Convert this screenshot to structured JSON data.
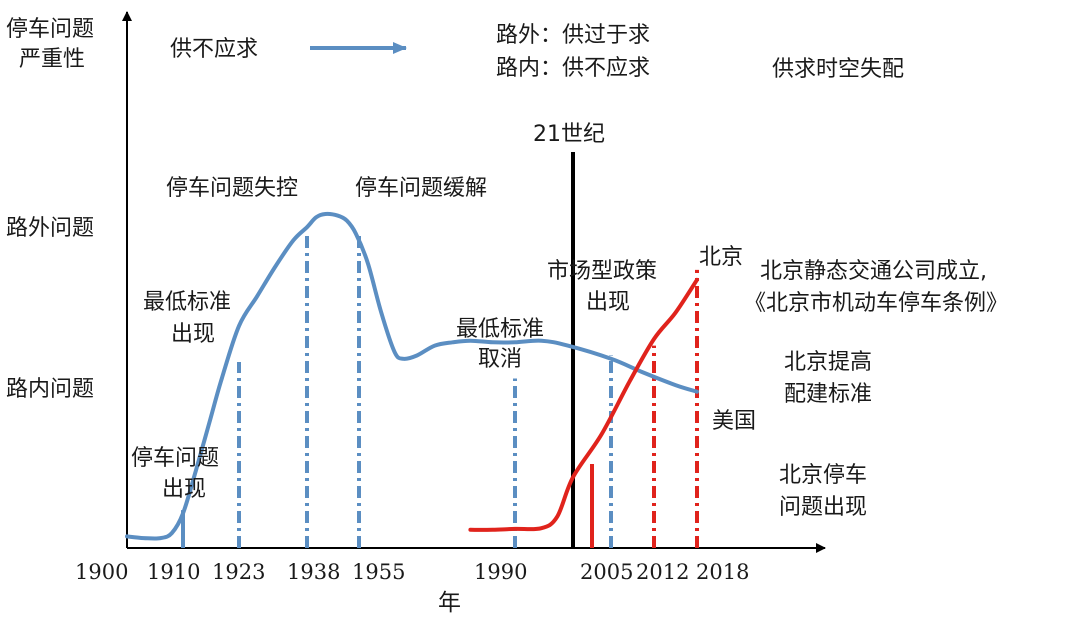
{
  "chart_data": {
    "type": "line",
    "title": "",
    "xlabel": "年",
    "ylabel": [
      "停车问题",
      "严重性"
    ],
    "y_levels": [
      {
        "id": "off-street",
        "label": "路外问题"
      },
      {
        "id": "on-street",
        "label": "路内问题"
      }
    ],
    "x_ticks": [
      1900,
      1910,
      1923,
      1938,
      1955,
      1990,
      2005,
      2012,
      2018
    ],
    "x_range": [
      1900,
      2032
    ],
    "y_range": [
      0,
      100
    ],
    "series": [
      {
        "name": "美国",
        "color": "#5b8ec2",
        "points": [
          [
            1900,
            2
          ],
          [
            1903,
            1.5
          ],
          [
            1906,
            1.5
          ],
          [
            1908,
            3
          ],
          [
            1910,
            9
          ],
          [
            1913,
            22
          ],
          [
            1916,
            36
          ],
          [
            1919,
            50
          ],
          [
            1923,
            66
          ],
          [
            1927,
            75
          ],
          [
            1931,
            84
          ],
          [
            1935,
            92
          ],
          [
            1938,
            96
          ],
          [
            1941,
            99
          ],
          [
            1944,
            100
          ],
          [
            1948,
            99.5
          ],
          [
            1951,
            98
          ],
          [
            1954,
            94
          ],
          [
            1957,
            85
          ],
          [
            1960,
            70
          ],
          [
            1963,
            58
          ],
          [
            1965,
            56
          ],
          [
            1968,
            57
          ],
          [
            1972,
            60
          ],
          [
            1976,
            61
          ],
          [
            1980,
            61.5
          ],
          [
            1985,
            61
          ],
          [
            1990,
            61
          ],
          [
            1995,
            61.5
          ],
          [
            2000,
            60
          ],
          [
            2005,
            56
          ],
          [
            2010,
            52
          ],
          [
            2015,
            48
          ],
          [
            2018,
            46
          ]
        ]
      },
      {
        "name": "北京",
        "color": "#e0231c",
        "points": [
          [
            1980,
            4
          ],
          [
            1985,
            4
          ],
          [
            1990,
            4.3
          ],
          [
            1995,
            4.5
          ],
          [
            1998,
            8
          ],
          [
            2001,
            20
          ],
          [
            2004,
            33
          ],
          [
            2008,
            49
          ],
          [
            2012,
            62
          ],
          [
            2015,
            70
          ],
          [
            2018,
            80
          ]
        ]
      }
    ],
    "legend": {
      "label": "供不应求",
      "color": "#5b8ec2"
    },
    "markers": [
      {
        "x": 1910,
        "kind": "solid",
        "color": "#5b8ec2",
        "y_top": 10
      },
      {
        "x": 1923,
        "kind": "dashdot",
        "color": "#5b8ec2",
        "y_top": 55
      },
      {
        "x": 1938,
        "kind": "dashdot",
        "color": "#5b8ec2",
        "y_top": 94
      },
      {
        "x": 1955,
        "kind": "dashdot",
        "color": "#5b8ec2",
        "y_top": 94
      },
      {
        "x": 1990,
        "kind": "dashdot",
        "color": "#5b8ec2",
        "y_top": 50
      },
      {
        "x": 2003,
        "kind": "solid",
        "color": "#e0231c",
        "y_top": 24
      },
      {
        "x": 2005,
        "kind": "dashdot",
        "color": "#5b8ec2",
        "y_top": 57
      },
      {
        "x": 2012,
        "kind": "dashdot",
        "color": "#e0231c",
        "y_top": 60
      },
      {
        "x": 2018,
        "kind": "dashdot",
        "color": "#e0231c",
        "y_top": 83
      }
    ],
    "century_line": {
      "x": 2001,
      "label": "21世纪"
    },
    "annotations": {
      "offstreet_surplus": "路外：供过于求",
      "onstreet_shortage": "路内：供不应求",
      "spatiotemporal": "供求时空失配",
      "problem_emerge_lines": [
        "停车问题",
        "出现"
      ],
      "min_standard_lines": [
        "最低标准",
        "出现"
      ],
      "out_of_control": "停车问题失控",
      "relieved": "停车问题缓解",
      "min_cancel_lines": [
        "最低标准",
        "取消"
      ],
      "market_policy_lines": [
        "市场型政策",
        "出现"
      ],
      "beijing_label": "北京",
      "beijing_company_lines": [
        "北京静态交通公司成立,",
        "《北京市机动车停车条例》"
      ],
      "beijing_standard_lines": [
        "北京提高",
        "配建标准"
      ],
      "usa_label": "美国",
      "beijing_problem_lines": [
        "北京停车",
        "问题出现"
      ]
    }
  }
}
